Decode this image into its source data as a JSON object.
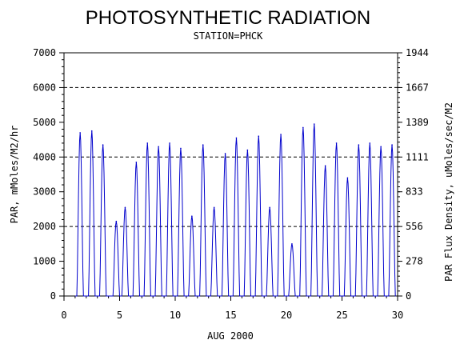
{
  "chart_data": {
    "type": "line",
    "title": "PHOTOSYNTHETIC RADIATION",
    "subtitle": "STATION=PHCK",
    "xlabel": "AUG 2000",
    "ylabel": "PAR, mMoles/M2/hr",
    "y2label": "PAR Flux Density, uMoles/sec/M2",
    "xlim": [
      0,
      30
    ],
    "ylim": [
      0,
      7000
    ],
    "y2lim": [
      0,
      1944
    ],
    "x_ticks": [
      "0",
      "5",
      "10",
      "15",
      "20",
      "25",
      "30"
    ],
    "y_ticks": [
      "0",
      "1000",
      "2000",
      "3000",
      "4000",
      "5000",
      "6000",
      "7000"
    ],
    "y2_ticks": [
      "0",
      "278",
      "556",
      "833",
      "1111",
      "1389",
      "1667",
      "1944"
    ],
    "dashed_reference_lines": [
      2000,
      4000,
      6000
    ],
    "line_color": "#0000cc",
    "series": [
      {
        "daily_peaks": [
          {
            "day": 1,
            "x": 1.45,
            "y": 4700
          },
          {
            "day": 2,
            "x": 2.5,
            "y": 4750
          },
          {
            "day": 3,
            "x": 3.5,
            "y": 4350
          },
          {
            "day": 4,
            "x": 4.7,
            "y": 2150
          },
          {
            "day": 5,
            "x": 5.5,
            "y": 2550
          },
          {
            "day": 6,
            "x": 6.5,
            "y": 3850
          },
          {
            "day": 7,
            "x": 7.5,
            "y": 4400
          },
          {
            "day": 8,
            "x": 8.5,
            "y": 4300
          },
          {
            "day": 9,
            "x": 9.5,
            "y": 4400
          },
          {
            "day": 10,
            "x": 10.5,
            "y": 4250
          },
          {
            "day": 11,
            "x": 11.5,
            "y": 2300
          },
          {
            "day": 12,
            "x": 12.5,
            "y": 4350
          },
          {
            "day": 13,
            "x": 13.5,
            "y": 2550
          },
          {
            "day": 14,
            "x": 14.5,
            "y": 4100
          },
          {
            "day": 15,
            "x": 15.5,
            "y": 4550
          },
          {
            "day": 16,
            "x": 16.5,
            "y": 4200
          },
          {
            "day": 17,
            "x": 17.5,
            "y": 4600
          },
          {
            "day": 18,
            "x": 18.5,
            "y": 2550
          },
          {
            "day": 19,
            "x": 19.5,
            "y": 4650
          },
          {
            "day": 20,
            "x": 20.5,
            "y": 1500
          },
          {
            "day": 21,
            "x": 21.5,
            "y": 4850
          },
          {
            "day": 22,
            "x": 22.5,
            "y": 4950
          },
          {
            "day": 23,
            "x": 23.5,
            "y": 3750
          },
          {
            "day": 24,
            "x": 24.5,
            "y": 4400
          },
          {
            "day": 25,
            "x": 25.5,
            "y": 3400
          },
          {
            "day": 26,
            "x": 26.5,
            "y": 4350
          },
          {
            "day": 27,
            "x": 27.5,
            "y": 4400
          },
          {
            "day": 28,
            "x": 28.5,
            "y": 4300
          },
          {
            "day": 29,
            "x": 29.5,
            "y": 4350
          }
        ]
      }
    ]
  }
}
